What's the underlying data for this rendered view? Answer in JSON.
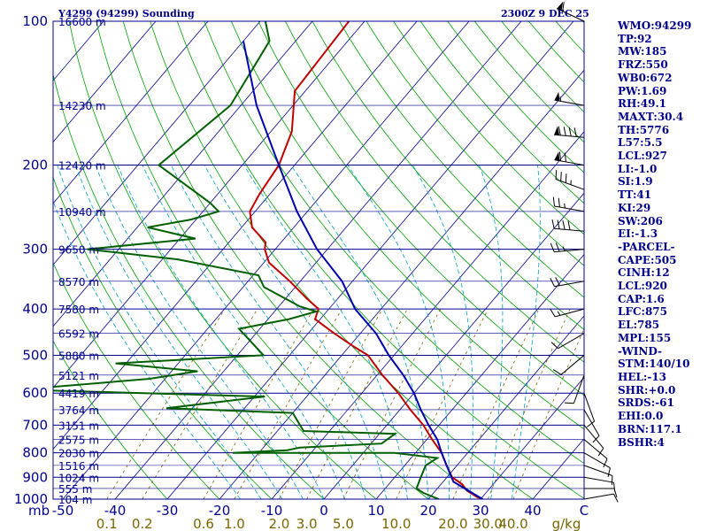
{
  "header": {
    "title": "Y4299 (94299) Sounding",
    "timestamp": "2300Z  9 DEC 25"
  },
  "indices": [
    "WMO:94299",
    "TP:92",
    "MW:185",
    "FRZ:550",
    "WB0:672",
    "PW:1.69",
    "RH:49.1",
    "MAXT:30.4",
    "TH:5776",
    "L57:5.5",
    "LCL:927",
    "LI:-1.0",
    "SI:1.9",
    "TT:41",
    "KI:29",
    "SW:206",
    "EI:-1.3",
    "-PARCEL-",
    "CAPE:505",
    "CINH:12",
    "LCL:920",
    "CAP:1.6",
    "LFC:875",
    "EL:785",
    "MPL:155",
    "-WIND-",
    "STM:140/10",
    "HEL:-13",
    "SHR:+0.0",
    "SRDS:-61",
    "EHI:0.0",
    "BRN:117.1",
    "BSHR:4"
  ],
  "colors": {
    "frame": "#00008b",
    "isobar": "#00008b",
    "isotherm": "#00008b",
    "dry_adiabat": "#00a000",
    "moist_adiabat": "#00a0c0",
    "mixing_ratio": "#806000",
    "temperature": "#c00000",
    "dewpoint": "#006000",
    "parcel": "#0000b0"
  },
  "chart_data": {
    "type": "line",
    "title": "Y4299 (94299) Sounding",
    "xlabel": "",
    "ylabel": "mb",
    "x_units": "°C",
    "y_units": "mb",
    "log_pressure": true,
    "ylim": [
      1000,
      100
    ],
    "xlim": [
      -50,
      50
    ],
    "pressure_ticks": [
      100,
      200,
      300,
      400,
      500,
      600,
      700,
      800,
      900,
      1000
    ],
    "temperature_ticks": [
      -50,
      -40,
      -30,
      -20,
      -10,
      0,
      10,
      20,
      30,
      40
    ],
    "mixing_ratio_ticks": [
      "0.1",
      "0.2",
      "0.6",
      "1.0",
      "2.0",
      "3.0",
      "5.0",
      "10.0",
      "20.0",
      "30.0",
      "40.0"
    ],
    "mixing_ratio_unit": "g/kg",
    "corner_labels": {
      "pressure": "mb",
      "temperature": "C"
    },
    "height_labels": [
      {
        "p": 100,
        "label": "16600 m"
      },
      {
        "p": 150,
        "label": "14230 m"
      },
      {
        "p": 200,
        "label": "12420 m"
      },
      {
        "p": 250,
        "label": "10940 m"
      },
      {
        "p": 300,
        "label": "9650 m"
      },
      {
        "p": 350,
        "label": "8570 m"
      },
      {
        "p": 400,
        "label": "7580 m"
      },
      {
        "p": 450,
        "label": "6592 m"
      },
      {
        "p": 500,
        "label": "5880 m"
      },
      {
        "p": 550,
        "label": "5121 m"
      },
      {
        "p": 600,
        "label": "4419 m"
      },
      {
        "p": 650,
        "label": "3764 m"
      },
      {
        "p": 700,
        "label": "3151 m"
      },
      {
        "p": 750,
        "label": "2575 m"
      },
      {
        "p": 800,
        "label": "2030 m"
      },
      {
        "p": 850,
        "label": "1516 m"
      },
      {
        "p": 900,
        "label": "1024 m"
      },
      {
        "p": 950,
        "label": "555 m"
      },
      {
        "p": 1000,
        "label": "104 m"
      }
    ],
    "series": [
      {
        "key": "temperature",
        "points": [
          [
            100,
            -73
          ],
          [
            140,
            -72
          ],
          [
            170,
            -66
          ],
          [
            200,
            -63
          ],
          [
            230,
            -62
          ],
          [
            250,
            -61
          ],
          [
            270,
            -58
          ],
          [
            290,
            -53
          ],
          [
            300,
            -52
          ],
          [
            320,
            -49
          ],
          [
            350,
            -42
          ],
          [
            380,
            -36
          ],
          [
            400,
            -32
          ],
          [
            420,
            -31
          ],
          [
            450,
            -25
          ],
          [
            480,
            -19
          ],
          [
            500,
            -15
          ],
          [
            550,
            -9
          ],
          [
            600,
            -3
          ],
          [
            650,
            2
          ],
          [
            700,
            7
          ],
          [
            750,
            11
          ],
          [
            800,
            15
          ],
          [
            850,
            18
          ],
          [
            900,
            21
          ],
          [
            930,
            24
          ],
          [
            960,
            26
          ],
          [
            990,
            29
          ],
          [
            1000,
            30.4
          ]
        ]
      },
      {
        "key": "dewpoint",
        "points": [
          [
            100,
            -89
          ],
          [
            110,
            -85
          ],
          [
            150,
            -82
          ],
          [
            200,
            -86
          ],
          [
            240,
            -70
          ],
          [
            250,
            -67
          ],
          [
            260,
            -71
          ],
          [
            270,
            -78
          ],
          [
            285,
            -67
          ],
          [
            300,
            -86
          ],
          [
            315,
            -67
          ],
          [
            340,
            -49
          ],
          [
            360,
            -46
          ],
          [
            395,
            -36
          ],
          [
            405,
            -32
          ],
          [
            420,
            -36
          ],
          [
            440,
            -44
          ],
          [
            500,
            -35
          ],
          [
            520,
            -62
          ],
          [
            540,
            -45
          ],
          [
            560,
            -53
          ],
          [
            590,
            -76
          ],
          [
            610,
            -28
          ],
          [
            645,
            -45
          ],
          [
            660,
            -20
          ],
          [
            720,
            -15
          ],
          [
            730,
            3
          ],
          [
            765,
            2
          ],
          [
            780,
            -13
          ],
          [
            790,
            -15
          ],
          [
            800,
            -25
          ],
          [
            800,
            6
          ],
          [
            820,
            15
          ],
          [
            850,
            14
          ],
          [
            900,
            15
          ],
          [
            950,
            16
          ],
          [
            970,
            18
          ],
          [
            1000,
            22
          ]
        ]
      },
      {
        "key": "parcel",
        "points": [
          [
            1000,
            30.4
          ],
          [
            920,
            22
          ],
          [
            850,
            18
          ],
          [
            800,
            15
          ],
          [
            750,
            12
          ],
          [
            700,
            8
          ],
          [
            650,
            4
          ],
          [
            600,
            0
          ],
          [
            550,
            -5
          ],
          [
            500,
            -11
          ],
          [
            450,
            -17
          ],
          [
            400,
            -25
          ],
          [
            350,
            -32
          ],
          [
            300,
            -42
          ],
          [
            250,
            -52
          ],
          [
            200,
            -63
          ],
          [
            150,
            -77
          ],
          [
            110,
            -90
          ]
        ]
      }
    ],
    "wind_barbs": [
      {
        "p": 100,
        "dir": 295,
        "spd": 60
      },
      {
        "p": 150,
        "dir": 280,
        "spd": 55
      },
      {
        "p": 175,
        "dir": 275,
        "spd": 90
      },
      {
        "p": 200,
        "dir": 280,
        "spd": 70
      },
      {
        "p": 225,
        "dir": 290,
        "spd": 35
      },
      {
        "p": 250,
        "dir": 280,
        "spd": 25
      },
      {
        "p": 275,
        "dir": 275,
        "spd": 40
      },
      {
        "p": 300,
        "dir": 265,
        "spd": 25
      },
      {
        "p": 350,
        "dir": 260,
        "spd": 20
      },
      {
        "p": 400,
        "dir": 255,
        "spd": 15
      },
      {
        "p": 450,
        "dir": 240,
        "spd": 10
      },
      {
        "p": 500,
        "dir": 230,
        "spd": 10
      },
      {
        "p": 550,
        "dir": 200,
        "spd": 10
      },
      {
        "p": 600,
        "dir": 160,
        "spd": 10
      },
      {
        "p": 650,
        "dir": 150,
        "spd": 10
      },
      {
        "p": 700,
        "dir": 140,
        "spd": 10
      },
      {
        "p": 750,
        "dir": 130,
        "spd": 10
      },
      {
        "p": 800,
        "dir": 120,
        "spd": 10
      },
      {
        "p": 850,
        "dir": 110,
        "spd": 10
      },
      {
        "p": 900,
        "dir": 100,
        "spd": 10
      },
      {
        "p": 950,
        "dir": 90,
        "spd": 10
      },
      {
        "p": 1000,
        "dir": 80,
        "spd": 10
      }
    ]
  }
}
